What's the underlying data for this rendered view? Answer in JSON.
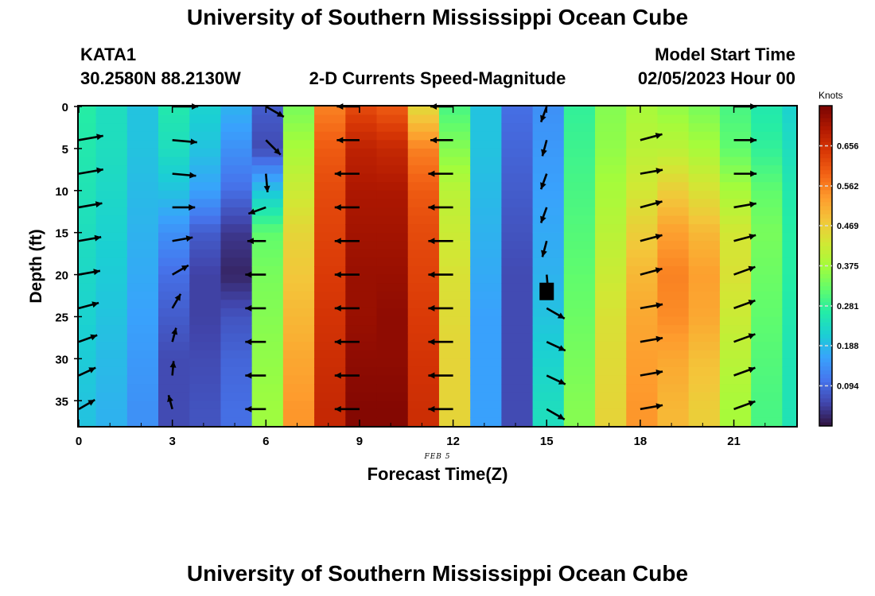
{
  "header": {
    "title": "University of Southern Mississippi Ocean Cube",
    "station": "KATA1",
    "coords": "30.2580N  88.2130W",
    "subtitle": "2-D Currents Speed-Magnitude",
    "model_start_label": "Model Start Time",
    "model_start_value": "02/05/2023 Hour 00",
    "date_label": "FEB 5",
    "footer_title": "University of Southern Mississippi Ocean Cube"
  },
  "colors": {
    "colormap": [
      "#30123b",
      "#4145ab",
      "#4675ed",
      "#39a2fc",
      "#1bcfd4",
      "#24eca6",
      "#61fc6c",
      "#a4fc3b",
      "#d1e834",
      "#f3c63a",
      "#fe9b2d",
      "#f36315",
      "#d93806",
      "#b11901",
      "#7a0402"
    ],
    "arrow": "#000000"
  },
  "chart_data": {
    "type": "heatmap",
    "title": "2-D Currents Speed-Magnitude",
    "xlabel": "Forecast Time(Z)",
    "ylabel": "Depth (ft)",
    "xlim": [
      0,
      23
    ],
    "ylim": [
      38,
      0
    ],
    "x_ticks": [
      "0",
      "3",
      "6",
      "9",
      "12",
      "15",
      "18",
      "21"
    ],
    "x_tick_values": [
      0,
      3,
      6,
      9,
      12,
      15,
      18,
      21
    ],
    "y_ticks": [
      "0",
      "5",
      "10",
      "15",
      "20",
      "25",
      "30",
      "35"
    ],
    "y_tick_values": [
      0,
      5,
      10,
      15,
      20,
      25,
      30,
      35
    ],
    "colorbar": {
      "title": "Knots",
      "min": 0.0,
      "max": 0.75,
      "ticks": [
        "0.094",
        "0.188",
        "0.281",
        "0.375",
        "0.469",
        "0.562",
        "0.656"
      ],
      "tick_values": [
        0.094,
        0.188,
        0.281,
        0.375,
        0.469,
        0.562,
        0.656
      ]
    },
    "hours": [
      0,
      1,
      2,
      3,
      4,
      5,
      6,
      7,
      8,
      9,
      10,
      11,
      12,
      13,
      14,
      15,
      16,
      17,
      18,
      19,
      20,
      21,
      22,
      23
    ],
    "speed_profile": {
      "depths": [
        0,
        5,
        10,
        15,
        20,
        25,
        30,
        36
      ],
      "values": [
        [
          0.27,
          0.26,
          0.25,
          0.24,
          0.23,
          0.22,
          0.21,
          0.2
        ],
        [
          0.24,
          0.24,
          0.23,
          0.22,
          0.21,
          0.2,
          0.19,
          0.18
        ],
        [
          0.2,
          0.2,
          0.19,
          0.18,
          0.17,
          0.16,
          0.15,
          0.14
        ],
        [
          0.26,
          0.24,
          0.2,
          0.14,
          0.1,
          0.08,
          0.06,
          0.06
        ],
        [
          0.22,
          0.2,
          0.16,
          0.08,
          0.05,
          0.05,
          0.06,
          0.07
        ],
        [
          0.18,
          0.14,
          0.1,
          0.04,
          0.02,
          0.07,
          0.09,
          0.1
        ],
        [
          0.08,
          0.06,
          0.2,
          0.32,
          0.34,
          0.35,
          0.36,
          0.37
        ],
        [
          0.34,
          0.38,
          0.42,
          0.46,
          0.48,
          0.5,
          0.52,
          0.54
        ],
        [
          0.56,
          0.6,
          0.62,
          0.63,
          0.64,
          0.65,
          0.66,
          0.67
        ],
        [
          0.62,
          0.68,
          0.7,
          0.71,
          0.72,
          0.72,
          0.73,
          0.74
        ],
        [
          0.6,
          0.67,
          0.7,
          0.71,
          0.72,
          0.73,
          0.73,
          0.74
        ],
        [
          0.45,
          0.56,
          0.6,
          0.62,
          0.63,
          0.64,
          0.65,
          0.66
        ],
        [
          0.3,
          0.35,
          0.4,
          0.42,
          0.44,
          0.45,
          0.46,
          0.46
        ],
        [
          0.2,
          0.2,
          0.19,
          0.18,
          0.17,
          0.16,
          0.16,
          0.16
        ],
        [
          0.1,
          0.09,
          0.08,
          0.07,
          0.06,
          0.06,
          0.06,
          0.06
        ],
        [
          0.14,
          0.15,
          0.16,
          0.17,
          0.18,
          0.2,
          0.22,
          0.24
        ],
        [
          0.28,
          0.29,
          0.3,
          0.31,
          0.32,
          0.33,
          0.34,
          0.35
        ],
        [
          0.35,
          0.36,
          0.38,
          0.4,
          0.42,
          0.44,
          0.45,
          0.46
        ],
        [
          0.38,
          0.4,
          0.43,
          0.47,
          0.5,
          0.52,
          0.53,
          0.54
        ],
        [
          0.36,
          0.4,
          0.47,
          0.53,
          0.56,
          0.55,
          0.52,
          0.5
        ],
        [
          0.34,
          0.38,
          0.44,
          0.5,
          0.53,
          0.52,
          0.49,
          0.47
        ],
        [
          0.3,
          0.32,
          0.38,
          0.43,
          0.44,
          0.42,
          0.4,
          0.38
        ],
        [
          0.26,
          0.28,
          0.32,
          0.34,
          0.33,
          0.32,
          0.31,
          0.3
        ],
        [
          0.22,
          0.24,
          0.26,
          0.27,
          0.27,
          0.26,
          0.25,
          0.25
        ]
      ]
    },
    "arrows": {
      "hours": [
        0,
        3,
        6,
        9,
        12,
        15,
        18,
        21
      ],
      "depths": [
        0,
        4,
        8,
        12,
        16,
        20,
        24,
        28,
        32,
        36
      ],
      "direction_deg": [
        [
          null,
          80,
          80,
          80,
          80,
          80,
          75,
          70,
          65,
          60
        ],
        [
          90,
          95,
          95,
          90,
          80,
          60,
          30,
          15,
          5,
          345
        ],
        [
          120,
          135,
          175,
          250,
          270,
          270,
          270,
          270,
          270,
          270
        ],
        [
          270,
          270,
          270,
          270,
          270,
          270,
          270,
          270,
          270,
          270
        ],
        [
          270,
          270,
          270,
          270,
          270,
          270,
          270,
          270,
          270,
          270
        ],
        [
          200,
          195,
          200,
          200,
          195,
          175,
          120,
          115,
          115,
          120
        ],
        [
          null,
          75,
          80,
          75,
          75,
          75,
          80,
          80,
          80,
          80
        ],
        [
          90,
          90,
          90,
          80,
          75,
          70,
          70,
          70,
          70,
          70
        ]
      ],
      "speed_knots": [
        [
          null,
          0.24,
          0.24,
          0.23,
          0.22,
          0.21,
          0.2,
          0.19,
          0.18,
          0.18
        ],
        [
          0.25,
          0.24,
          0.23,
          0.22,
          0.2,
          0.18,
          0.16,
          0.14,
          0.14,
          0.14
        ],
        [
          0.2,
          0.2,
          0.18,
          0.18,
          0.18,
          0.2,
          0.2,
          0.2,
          0.2,
          0.2
        ],
        [
          0.22,
          0.22,
          0.24,
          0.24,
          0.24,
          0.24,
          0.24,
          0.24,
          0.24,
          0.24
        ],
        [
          0.22,
          0.22,
          0.24,
          0.24,
          0.24,
          0.24,
          0.24,
          0.24,
          0.24,
          0.24
        ],
        [
          0.16,
          0.16,
          0.16,
          0.16,
          0.16,
          0.16,
          0.2,
          0.2,
          0.2,
          0.2
        ],
        [
          null,
          0.22,
          0.22,
          0.22,
          0.22,
          0.22,
          0.22,
          0.22,
          0.22,
          0.22
        ],
        [
          0.22,
          0.22,
          0.22,
          0.22,
          0.22,
          0.22,
          0.22,
          0.22,
          0.22,
          0.22
        ]
      ]
    },
    "marker": {
      "hour": 15,
      "depth": 22,
      "label": ""
    }
  }
}
